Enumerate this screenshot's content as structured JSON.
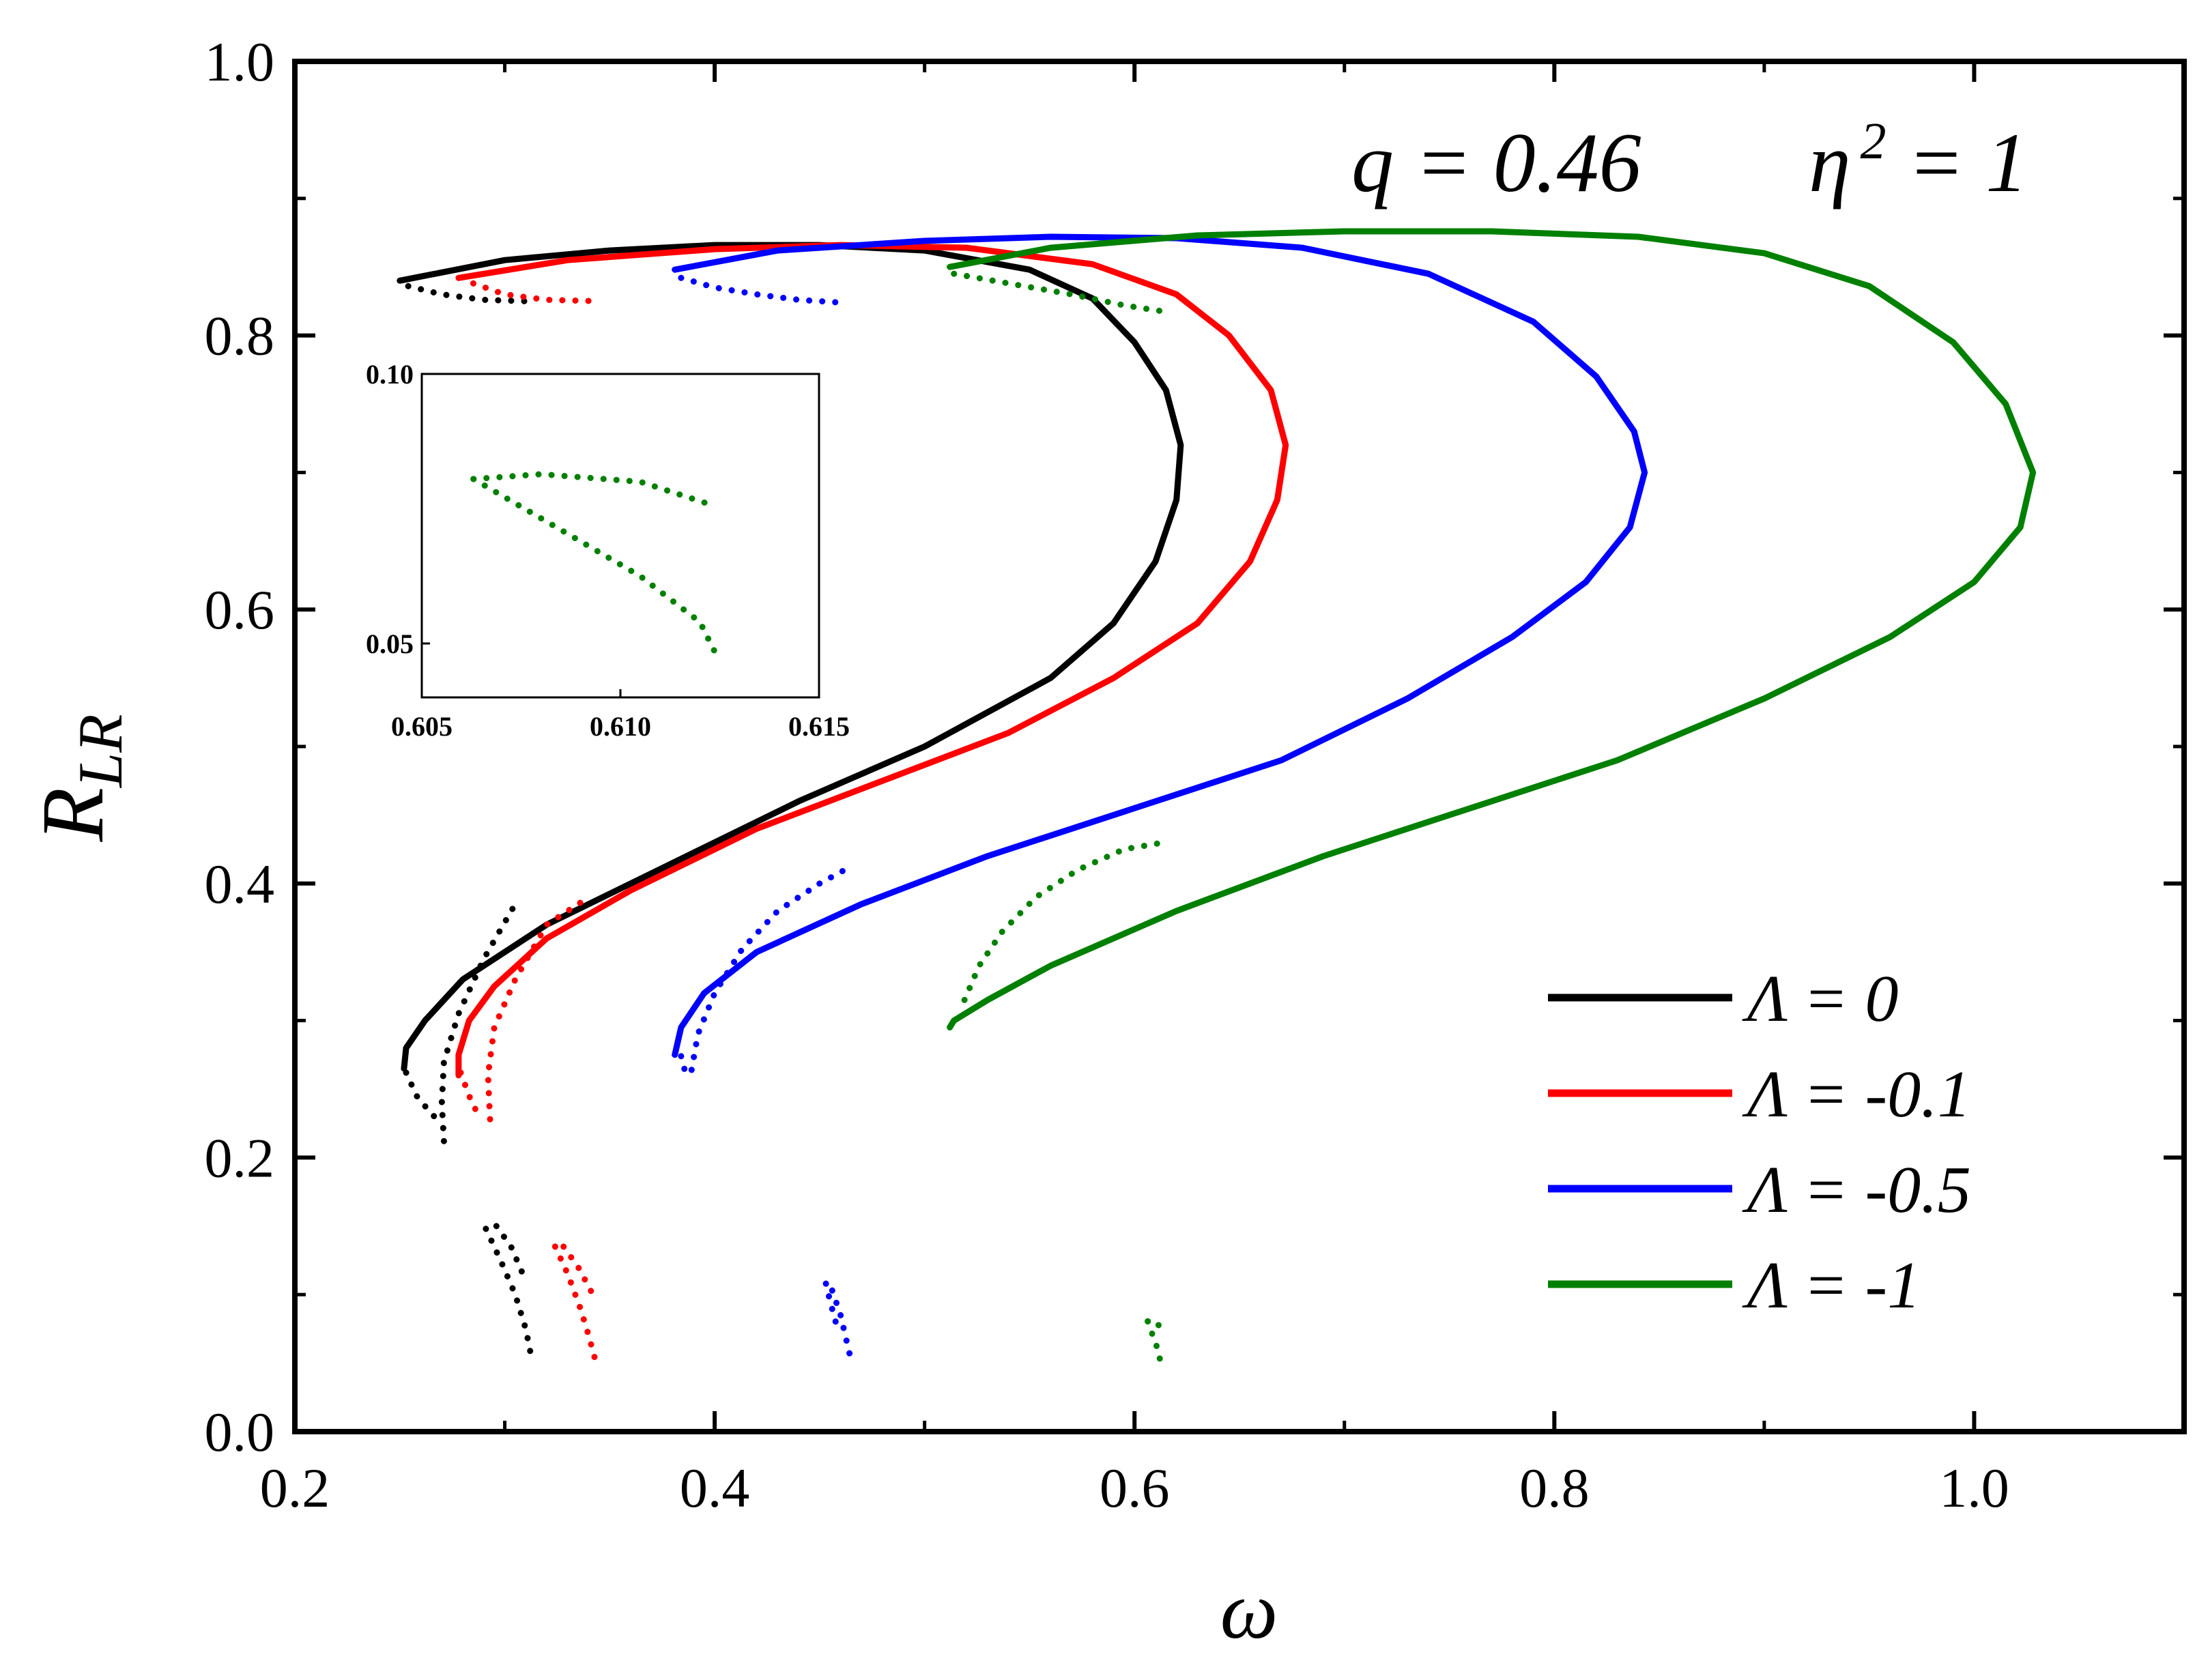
{
  "chart_data": {
    "type": "line",
    "title": "",
    "xlabel": "ω",
    "ylabel": "R",
    "ylabel_sub": "LR",
    "xlim": [
      0.2,
      1.1
    ],
    "ylim": [
      0.0,
      1.0
    ],
    "x_ticks": [
      "0.2",
      "0.4",
      "0.6",
      "0.8",
      "1.0"
    ],
    "y_ticks": [
      "0.0",
      "0.2",
      "0.4",
      "0.6",
      "0.8",
      "1.0"
    ],
    "annotation": {
      "q_text": "q = 0.46",
      "eta_base": "η",
      "eta_exp": "2",
      "eta_value": " = 1"
    },
    "legend_position": "bottom-right",
    "series": [
      {
        "name": "Λ = 0",
        "color": "#000000",
        "solid": [
          [
            0.25,
            0.84
          ],
          [
            0.3,
            0.855
          ],
          [
            0.35,
            0.862
          ],
          [
            0.4,
            0.866
          ],
          [
            0.45,
            0.866
          ],
          [
            0.5,
            0.862
          ],
          [
            0.55,
            0.848
          ],
          [
            0.58,
            0.827
          ],
          [
            0.6,
            0.795
          ],
          [
            0.615,
            0.76
          ],
          [
            0.622,
            0.72
          ],
          [
            0.62,
            0.68
          ],
          [
            0.61,
            0.635
          ],
          [
            0.59,
            0.59
          ],
          [
            0.56,
            0.55
          ],
          [
            0.5,
            0.5
          ],
          [
            0.44,
            0.46
          ],
          [
            0.38,
            0.415
          ],
          [
            0.32,
            0.37
          ],
          [
            0.28,
            0.33
          ],
          [
            0.262,
            0.3
          ],
          [
            0.253,
            0.28
          ],
          [
            0.252,
            0.265
          ]
        ],
        "dotted": [
          [
            [
              0.254,
              0.836
            ],
            [
              0.27,
              0.83
            ],
            [
              0.29,
              0.826
            ],
            [
              0.31,
              0.825
            ]
          ],
          [
            [
              0.253,
              0.262
            ],
            [
              0.258,
              0.245
            ],
            [
              0.265,
              0.232
            ],
            [
              0.27,
              0.225
            ]
          ],
          [
            [
              0.271,
              0.212
            ],
            [
              0.27,
              0.24
            ],
            [
              0.271,
              0.27
            ],
            [
              0.278,
              0.305
            ],
            [
              0.29,
              0.345
            ],
            [
              0.305,
              0.385
            ]
          ],
          [
            [
              0.291,
              0.148
            ],
            [
              0.298,
              0.125
            ],
            [
              0.305,
              0.1
            ],
            [
              0.31,
              0.075
            ],
            [
              0.313,
              0.052
            ]
          ],
          [
            [
              0.296,
              0.15
            ],
            [
              0.303,
              0.135
            ],
            [
              0.31,
              0.11
            ]
          ]
        ]
      },
      {
        "name": "Λ = -0.1",
        "color": "#ff0000",
        "solid": [
          [
            0.278,
            0.842
          ],
          [
            0.33,
            0.855
          ],
          [
            0.4,
            0.863
          ],
          [
            0.46,
            0.866
          ],
          [
            0.52,
            0.864
          ],
          [
            0.58,
            0.852
          ],
          [
            0.62,
            0.83
          ],
          [
            0.645,
            0.8
          ],
          [
            0.665,
            0.76
          ],
          [
            0.672,
            0.72
          ],
          [
            0.668,
            0.68
          ],
          [
            0.655,
            0.635
          ],
          [
            0.63,
            0.59
          ],
          [
            0.59,
            0.55
          ],
          [
            0.54,
            0.51
          ],
          [
            0.48,
            0.475
          ],
          [
            0.42,
            0.44
          ],
          [
            0.36,
            0.395
          ],
          [
            0.32,
            0.36
          ],
          [
            0.295,
            0.325
          ],
          [
            0.283,
            0.3
          ],
          [
            0.278,
            0.275
          ],
          [
            0.278,
            0.26
          ]
        ],
        "dotted": [
          [
            [
              0.285,
              0.838
            ],
            [
              0.3,
              0.83
            ],
            [
              0.32,
              0.826
            ],
            [
              0.345,
              0.825
            ]
          ],
          [
            [
              0.279,
              0.262
            ],
            [
              0.283,
              0.245
            ],
            [
              0.287,
              0.232
            ]
          ],
          [
            [
              0.293,
              0.228
            ],
            [
              0.292,
              0.26
            ],
            [
              0.295,
              0.295
            ],
            [
              0.305,
              0.33
            ],
            [
              0.32,
              0.37
            ],
            [
              0.34,
              0.39
            ]
          ],
          [
            [
              0.324,
              0.135
            ],
            [
              0.33,
              0.115
            ],
            [
              0.336,
              0.09
            ],
            [
              0.34,
              0.07
            ],
            [
              0.343,
              0.053
            ]
          ],
          [
            [
              0.328,
              0.135
            ],
            [
              0.335,
              0.12
            ],
            [
              0.342,
              0.1
            ]
          ]
        ]
      },
      {
        "name": "Λ = -0.5",
        "color": "#0000ff",
        "solid": [
          [
            0.381,
            0.848
          ],
          [
            0.43,
            0.862
          ],
          [
            0.5,
            0.869
          ],
          [
            0.56,
            0.872
          ],
          [
            0.62,
            0.871
          ],
          [
            0.68,
            0.864
          ],
          [
            0.74,
            0.845
          ],
          [
            0.79,
            0.81
          ],
          [
            0.82,
            0.77
          ],
          [
            0.838,
            0.73
          ],
          [
            0.843,
            0.7
          ],
          [
            0.836,
            0.66
          ],
          [
            0.815,
            0.62
          ],
          [
            0.78,
            0.58
          ],
          [
            0.73,
            0.535
          ],
          [
            0.67,
            0.49
          ],
          [
            0.6,
            0.455
          ],
          [
            0.53,
            0.42
          ],
          [
            0.47,
            0.385
          ],
          [
            0.42,
            0.35
          ],
          [
            0.395,
            0.32
          ],
          [
            0.384,
            0.295
          ],
          [
            0.381,
            0.275
          ]
        ],
        "dotted": [
          [
            [
              0.384,
              0.842
            ],
            [
              0.4,
              0.835
            ],
            [
              0.42,
              0.83
            ],
            [
              0.44,
              0.826
            ],
            [
              0.46,
              0.824
            ]
          ],
          [
            [
              0.384,
              0.274
            ],
            [
              0.386,
              0.262
            ]
          ],
          [
            [
              0.389,
              0.264
            ],
            [
              0.392,
              0.29
            ],
            [
              0.4,
              0.32
            ],
            [
              0.413,
              0.352
            ],
            [
              0.43,
              0.38
            ],
            [
              0.45,
              0.4
            ],
            [
              0.462,
              0.41
            ]
          ],
          [
            [
              0.453,
              0.108
            ],
            [
              0.455,
              0.095
            ],
            [
              0.458,
              0.078
            ]
          ],
          [
            [
              0.456,
              0.103
            ],
            [
              0.46,
              0.085
            ],
            [
              0.463,
              0.065
            ],
            [
              0.465,
              0.052
            ]
          ]
        ]
      },
      {
        "name": "Λ = -1",
        "color": "#008000",
        "solid": [
          [
            0.512,
            0.85
          ],
          [
            0.56,
            0.864
          ],
          [
            0.63,
            0.873
          ],
          [
            0.7,
            0.876
          ],
          [
            0.77,
            0.876
          ],
          [
            0.84,
            0.872
          ],
          [
            0.9,
            0.86
          ],
          [
            0.95,
            0.836
          ],
          [
            0.99,
            0.795
          ],
          [
            1.015,
            0.75
          ],
          [
            1.028,
            0.7
          ],
          [
            1.022,
            0.66
          ],
          [
            1.0,
            0.62
          ],
          [
            0.96,
            0.58
          ],
          [
            0.9,
            0.535
          ],
          [
            0.83,
            0.49
          ],
          [
            0.76,
            0.455
          ],
          [
            0.69,
            0.42
          ],
          [
            0.62,
            0.38
          ],
          [
            0.56,
            0.34
          ],
          [
            0.53,
            0.315
          ],
          [
            0.514,
            0.3
          ],
          [
            0.512,
            0.295
          ]
        ],
        "dotted": [
          [
            [
              0.514,
              0.845
            ],
            [
              0.54,
              0.838
            ],
            [
              0.57,
              0.83
            ],
            [
              0.595,
              0.822
            ],
            [
              0.612,
              0.818
            ]
          ],
          [
            [
              0.519,
              0.315
            ],
            [
              0.526,
              0.34
            ],
            [
              0.537,
              0.365
            ],
            [
              0.553,
              0.39
            ],
            [
              0.573,
              0.41
            ],
            [
              0.595,
              0.425
            ],
            [
              0.614,
              0.43
            ]
          ],
          [
            [
              0.6063,
              0.0805
            ],
            [
              0.608,
              0.0814
            ],
            [
              0.6105,
              0.08
            ],
            [
              0.6123,
              0.0757
            ]
          ],
          [
            [
              0.6063,
              0.0805
            ],
            [
              0.6081,
              0.0728
            ],
            [
              0.6105,
              0.0625
            ],
            [
              0.612,
              0.054
            ],
            [
              0.6124,
              0.0481
            ]
          ]
        ]
      }
    ],
    "inset": {
      "xlim": [
        0.605,
        0.615
      ],
      "ylim": [
        0.04,
        0.1
      ],
      "x_ticks": [
        "0.605",
        "0.610",
        "0.615"
      ],
      "y_ticks": [
        "0.05",
        "0.10"
      ],
      "series_name": "Λ = -1",
      "color": "#008000"
    }
  }
}
